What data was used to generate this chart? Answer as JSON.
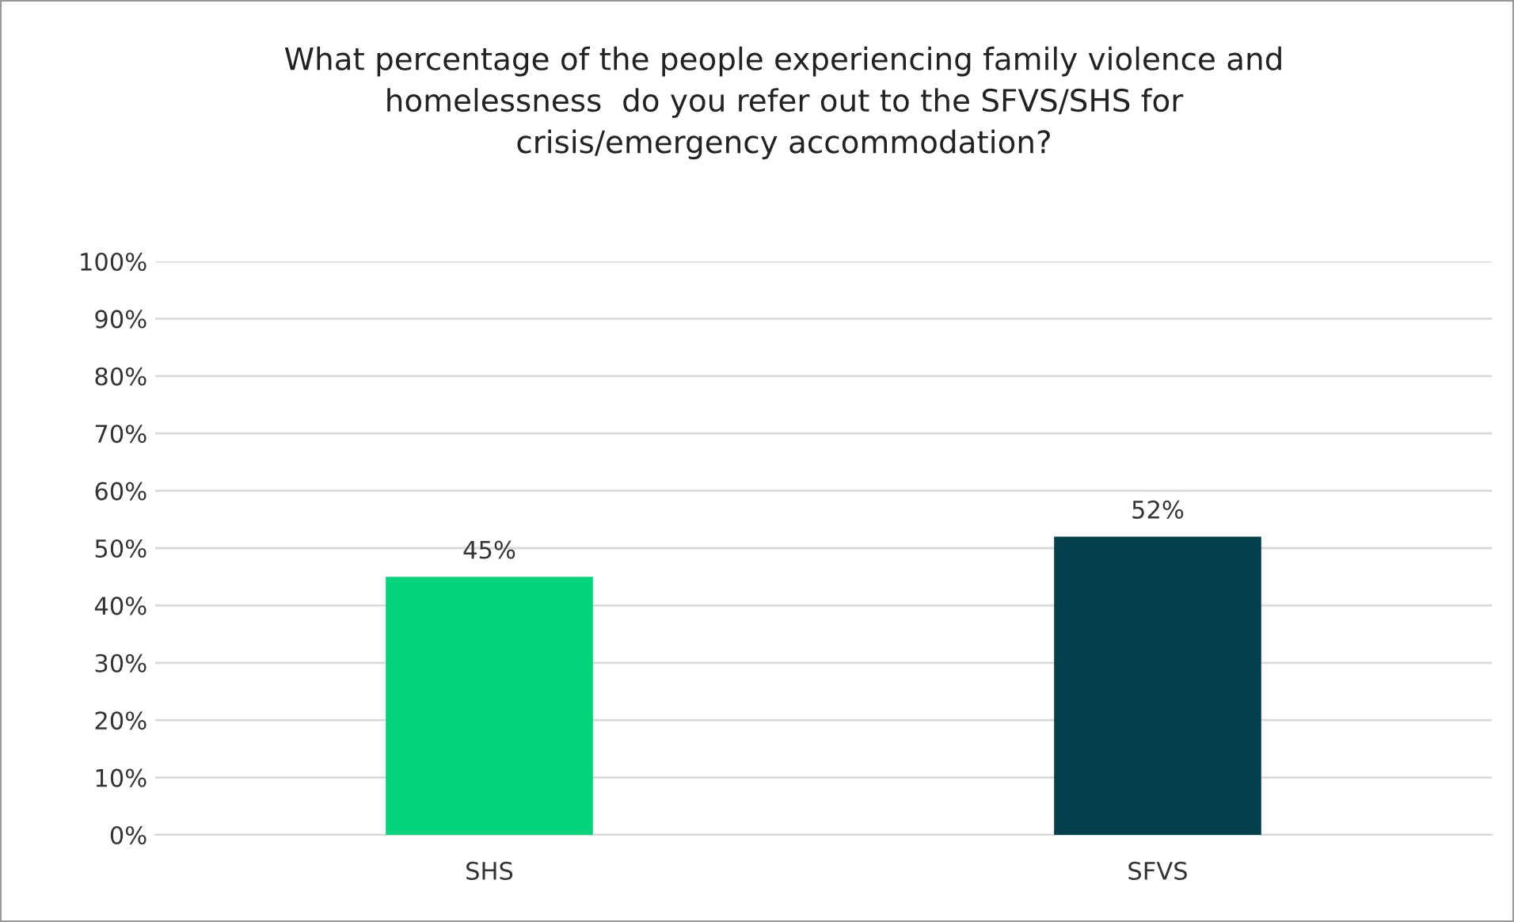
{
  "chart_data": {
    "type": "bar",
    "title": "What percentage of the people experiencing family violence and\nhomelessness  do you refer out to the SFVS/SHS for\ncrisis/emergency accommodation?",
    "categories": [
      "SHS",
      "SFVS"
    ],
    "values": [
      45,
      52
    ],
    "colors": [
      "#06d47a",
      "#04404b"
    ],
    "value_labels": [
      "45%",
      "52%"
    ],
    "ylim": [
      0,
      100
    ],
    "yticks": [
      {
        "value": 0,
        "label": "0%"
      },
      {
        "value": 10,
        "label": "10%"
      },
      {
        "value": 20,
        "label": "20%"
      },
      {
        "value": 30,
        "label": "30%"
      },
      {
        "value": 40,
        "label": "40%"
      },
      {
        "value": 50,
        "label": "50%"
      },
      {
        "value": 60,
        "label": "60%"
      },
      {
        "value": 70,
        "label": "70%"
      },
      {
        "value": 80,
        "label": "80%"
      },
      {
        "value": 90,
        "label": "90%"
      },
      {
        "value": 100,
        "label": "100%"
      }
    ],
    "grid": "y"
  }
}
